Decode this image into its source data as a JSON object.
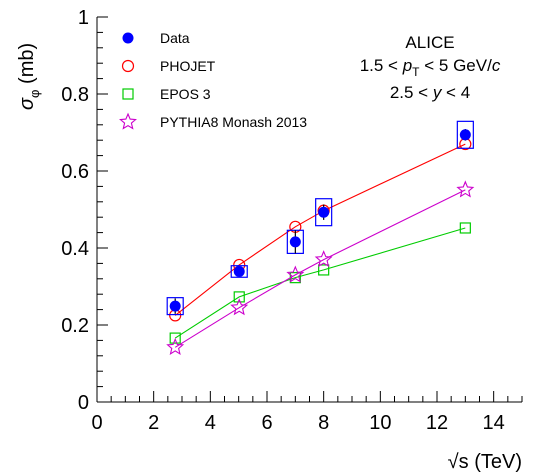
{
  "chart_data": {
    "type": "scatter",
    "xlabel_sqrt": "√s",
    "xlabel_rest": " (TeV)",
    "ylabel_main": "σ",
    "ylabel_sub": "φ",
    "ylabel_rest": " (mb)",
    "xlim": [
      0,
      15
    ],
    "ylim": [
      0,
      1
    ],
    "x_ticks": [
      0,
      2,
      4,
      6,
      8,
      10,
      12,
      14
    ],
    "y_ticks": [
      0,
      0.2,
      0.4,
      0.6,
      0.8,
      1
    ],
    "y_tick_labels": [
      "0",
      "0.2",
      "0.4",
      "0.6",
      "0.8",
      "1"
    ],
    "legend_position": "top-left",
    "annotations": {
      "experiment": "ALICE",
      "pt_left": "1.5 < ",
      "pt_var": "p",
      "pt_sub": "T",
      "pt_right": " < 5 GeV/",
      "pt_c": "c",
      "y_left": "2.5 < ",
      "y_var": "y",
      "y_right": " < 4"
    },
    "series": [
      {
        "name": "Data",
        "marker": "filled-circle",
        "color": "#0000ff",
        "connected": false,
        "x": [
          2.76,
          5.02,
          7.0,
          8.0,
          13.0
        ],
        "y": [
          0.249,
          0.339,
          0.416,
          0.493,
          0.694
        ],
        "stat_err": [
          0.02,
          0.01,
          0.03,
          0.02,
          0.015
        ],
        "sys_err": [
          0.022,
          0.015,
          0.03,
          0.035,
          0.035
        ]
      },
      {
        "name": "PHOJET",
        "marker": "open-circle",
        "color": "#ff0000",
        "connected": true,
        "x": [
          2.76,
          5.02,
          7.0,
          8.0,
          13.0
        ],
        "y": [
          0.225,
          0.356,
          0.455,
          0.497,
          0.67
        ]
      },
      {
        "name": "EPOS 3",
        "marker": "open-square",
        "color": "#00cc00",
        "connected": true,
        "x": [
          2.76,
          5.02,
          7.0,
          8.0,
          13.0
        ],
        "y": [
          0.166,
          0.273,
          0.323,
          0.343,
          0.452
        ]
      },
      {
        "name": "PYTHIA8 Monash 2013",
        "marker": "open-star",
        "color": "#cc00cc",
        "connected": true,
        "x": [
          2.76,
          5.02,
          7.0,
          8.0,
          13.0
        ],
        "y": [
          0.142,
          0.245,
          0.33,
          0.37,
          0.551
        ]
      }
    ]
  }
}
